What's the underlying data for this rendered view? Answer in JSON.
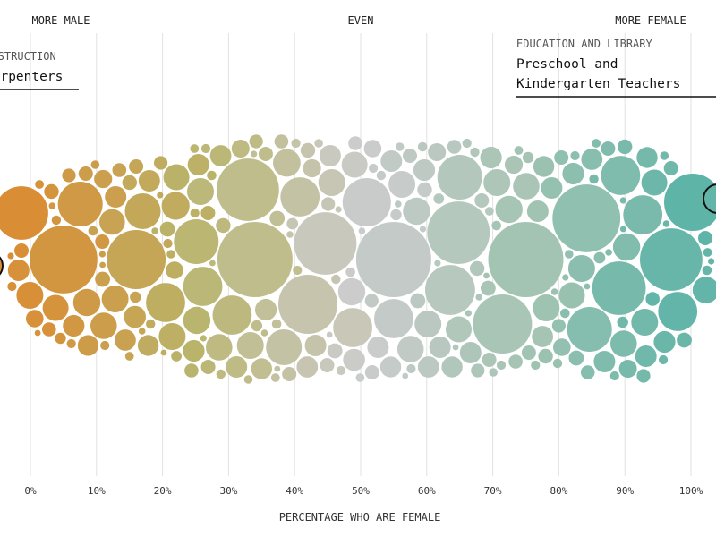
{
  "chart_data": {
    "type": "scatter",
    "subtype": "bubble-beeswarm",
    "xlabel": "PERCENTAGE WHO ARE FEMALE",
    "xlim": [
      0,
      100
    ],
    "x_ticks": [
      "0%",
      "10%",
      "20%",
      "30%",
      "40%",
      "50%",
      "60%",
      "70%",
      "80%",
      "90%",
      "100%"
    ],
    "header_labels": {
      "left": "MORE MALE",
      "center": "EVEN",
      "right": "MORE FEMALE"
    },
    "color_stops": [
      {
        "pct": 0,
        "color": "#d98e36"
      },
      {
        "pct": 25,
        "color": "#b9b46a"
      },
      {
        "pct": 50,
        "color": "#cccccc"
      },
      {
        "pct": 75,
        "color": "#a3c4b2"
      },
      {
        "pct": 100,
        "color": "#5fb4a8"
      }
    ],
    "annotations": [
      {
        "category": "CONSTRUCTION",
        "occupation": "Carpenters",
        "pct_female": 1.5,
        "side": "left"
      },
      {
        "category": "EDUCATION AND LIBRARY",
        "occupation": "Preschool and Kindergarten Teachers",
        "occupation_lines": [
          "Preschool and",
          "Kindergarten Teachers"
        ],
        "pct_female": 98,
        "side": "right"
      }
    ],
    "size_unit": "workers (thousands)",
    "bubbles": [
      [
        5,
        2250
      ],
      [
        0,
        1400
      ],
      [
        16,
        1700
      ],
      [
        34,
        2750
      ],
      [
        34,
        1900
      ],
      [
        55,
        2750
      ],
      [
        46,
        1900
      ],
      [
        42,
        1700
      ],
      [
        64,
        1900
      ],
      [
        75,
        2750
      ],
      [
        82,
        2250
      ],
      [
        72,
        1700
      ],
      [
        91,
        1400
      ],
      [
        97,
        1900
      ],
      [
        100,
        1600
      ],
      [
        27,
        980
      ],
      [
        28,
        750
      ],
      [
        7,
        980
      ],
      [
        63,
        1220
      ],
      [
        52,
        1140
      ],
      [
        55,
        750
      ],
      [
        65,
        980
      ],
      [
        86,
        980
      ],
      [
        90,
        750
      ],
      [
        40,
        750
      ],
      [
        30,
        750
      ],
      [
        21,
        750
      ],
      [
        17,
        625
      ],
      [
        98,
        750
      ],
      [
        88,
        750
      ],
      [
        45,
        750
      ],
      [
        40,
        625
      ],
      [
        1,
        350
      ],
      [
        3,
        330
      ],
      [
        8,
        360
      ],
      [
        10,
        340
      ],
      [
        12,
        350
      ],
      [
        14,
        320
      ],
      [
        19,
        380
      ],
      [
        22,
        350
      ],
      [
        24,
        330
      ],
      [
        26,
        360
      ],
      [
        29,
        350
      ],
      [
        31,
        340
      ],
      [
        36,
        350
      ],
      [
        38,
        370
      ],
      [
        44,
        350
      ],
      [
        48,
        330
      ],
      [
        50,
        360
      ],
      [
        53,
        350
      ],
      [
        57,
        340
      ],
      [
        59,
        360
      ],
      [
        61,
        350
      ],
      [
        67,
        330
      ],
      [
        69,
        350
      ],
      [
        71,
        340
      ],
      [
        73,
        360
      ],
      [
        77,
        350
      ],
      [
        79,
        330
      ],
      [
        84,
        350
      ],
      [
        87,
        360
      ],
      [
        89,
        340
      ],
      [
        93,
        350
      ],
      [
        95,
        330
      ],
      [
        99,
        340
      ],
      [
        2,
        225
      ],
      [
        6,
        230
      ],
      [
        9,
        210
      ],
      [
        11,
        225
      ],
      [
        13,
        220
      ],
      [
        15,
        235
      ],
      [
        18,
        225
      ],
      [
        20,
        215
      ],
      [
        23,
        225
      ],
      [
        25,
        230
      ],
      [
        28,
        220
      ],
      [
        32,
        225
      ],
      [
        35,
        215
      ],
      [
        37,
        230
      ],
      [
        41,
        225
      ],
      [
        43,
        220
      ],
      [
        47,
        225
      ],
      [
        49,
        235
      ],
      [
        51,
        225
      ],
      [
        54,
        215
      ],
      [
        56,
        225
      ],
      [
        58,
        230
      ],
      [
        60,
        220
      ],
      [
        62,
        225
      ],
      [
        66,
        215
      ],
      [
        68,
        225
      ],
      [
        70,
        230
      ],
      [
        74,
        220
      ],
      [
        76,
        225
      ],
      [
        78,
        215
      ],
      [
        80,
        225
      ],
      [
        83,
        230
      ],
      [
        85,
        220
      ],
      [
        88,
        225
      ],
      [
        92,
        215
      ],
      [
        94,
        225
      ],
      [
        96,
        230
      ],
      [
        0,
        100
      ],
      [
        2,
        95
      ],
      [
        4,
        105
      ],
      [
        6,
        100
      ],
      [
        8,
        90
      ],
      [
        10,
        100
      ],
      [
        12,
        110
      ],
      [
        14,
        95
      ],
      [
        16,
        100
      ],
      [
        18,
        105
      ],
      [
        20,
        90
      ],
      [
        22,
        100
      ],
      [
        24,
        110
      ],
      [
        26,
        95
      ],
      [
        28,
        100
      ],
      [
        30,
        105
      ],
      [
        32,
        90
      ],
      [
        34,
        100
      ],
      [
        36,
        110
      ],
      [
        38,
        95
      ],
      [
        40,
        100
      ],
      [
        42,
        105
      ],
      [
        44,
        90
      ],
      [
        46,
        100
      ],
      [
        48,
        110
      ],
      [
        50,
        95
      ],
      [
        52,
        100
      ],
      [
        54,
        105
      ],
      [
        56,
        90
      ],
      [
        58,
        100
      ],
      [
        60,
        110
      ],
      [
        62,
        95
      ],
      [
        64,
        100
      ],
      [
        66,
        105
      ],
      [
        68,
        90
      ],
      [
        70,
        100
      ],
      [
        72,
        110
      ],
      [
        74,
        95
      ],
      [
        76,
        100
      ],
      [
        78,
        105
      ],
      [
        80,
        90
      ],
      [
        82,
        100
      ],
      [
        84,
        110
      ],
      [
        86,
        95
      ],
      [
        88,
        100
      ],
      [
        90,
        105
      ],
      [
        92,
        90
      ],
      [
        94,
        100
      ],
      [
        96,
        110
      ],
      [
        98,
        95
      ],
      [
        100,
        100
      ],
      [
        1,
        40
      ],
      [
        3,
        38
      ],
      [
        5,
        42
      ],
      [
        7,
        40
      ],
      [
        9,
        36
      ],
      [
        11,
        40
      ],
      [
        13,
        44
      ],
      [
        15,
        38
      ],
      [
        17,
        40
      ],
      [
        19,
        42
      ],
      [
        21,
        36
      ],
      [
        23,
        40
      ],
      [
        25,
        44
      ],
      [
        27,
        38
      ],
      [
        29,
        40
      ],
      [
        31,
        42
      ],
      [
        33,
        36
      ],
      [
        35,
        40
      ],
      [
        37,
        44
      ],
      [
        39,
        38
      ],
      [
        41,
        40
      ],
      [
        43,
        42
      ],
      [
        45,
        36
      ],
      [
        47,
        40
      ],
      [
        49,
        44
      ],
      [
        51,
        38
      ],
      [
        53,
        40
      ],
      [
        55,
        42
      ],
      [
        57,
        36
      ],
      [
        59,
        40
      ],
      [
        61,
        44
      ],
      [
        63,
        38
      ],
      [
        65,
        40
      ],
      [
        67,
        42
      ],
      [
        69,
        36
      ],
      [
        71,
        40
      ],
      [
        73,
        44
      ],
      [
        75,
        38
      ],
      [
        77,
        40
      ],
      [
        79,
        42
      ],
      [
        81,
        36
      ],
      [
        83,
        40
      ],
      [
        85,
        44
      ],
      [
        87,
        38
      ],
      [
        89,
        40
      ],
      [
        91,
        42
      ],
      [
        93,
        36
      ],
      [
        95,
        40
      ],
      [
        97,
        44
      ],
      [
        99,
        38
      ],
      [
        0,
        20
      ],
      [
        3,
        18
      ],
      [
        6,
        22
      ],
      [
        9,
        20
      ],
      [
        12,
        18
      ],
      [
        15,
        22
      ],
      [
        18,
        20
      ],
      [
        21,
        18
      ],
      [
        24,
        22
      ],
      [
        27,
        20
      ],
      [
        30,
        18
      ],
      [
        33,
        22
      ],
      [
        36,
        20
      ],
      [
        39,
        18
      ],
      [
        42,
        22
      ],
      [
        45,
        20
      ],
      [
        48,
        18
      ],
      [
        51,
        22
      ],
      [
        54,
        20
      ],
      [
        57,
        18
      ],
      [
        60,
        22
      ],
      [
        63,
        20
      ],
      [
        66,
        18
      ],
      [
        69,
        22
      ],
      [
        72,
        20
      ],
      [
        75,
        18
      ],
      [
        78,
        22
      ],
      [
        81,
        20
      ],
      [
        84,
        18
      ],
      [
        87,
        22
      ],
      [
        90,
        20
      ],
      [
        93,
        18
      ],
      [
        96,
        22
      ],
      [
        99,
        20
      ],
      [
        4,
        60
      ],
      [
        14,
        60
      ],
      [
        24,
        55
      ],
      [
        34,
        60
      ],
      [
        44,
        65
      ],
      [
        54,
        60
      ],
      [
        64,
        55
      ],
      [
        74,
        60
      ],
      [
        84,
        65
      ],
      [
        94,
        60
      ],
      [
        2,
        150
      ],
      [
        11,
        160
      ],
      [
        21,
        150
      ],
      [
        31,
        155
      ],
      [
        41,
        160
      ],
      [
        51,
        150
      ],
      [
        61,
        155
      ],
      [
        71,
        160
      ],
      [
        81,
        150
      ],
      [
        91,
        155
      ]
    ]
  }
}
